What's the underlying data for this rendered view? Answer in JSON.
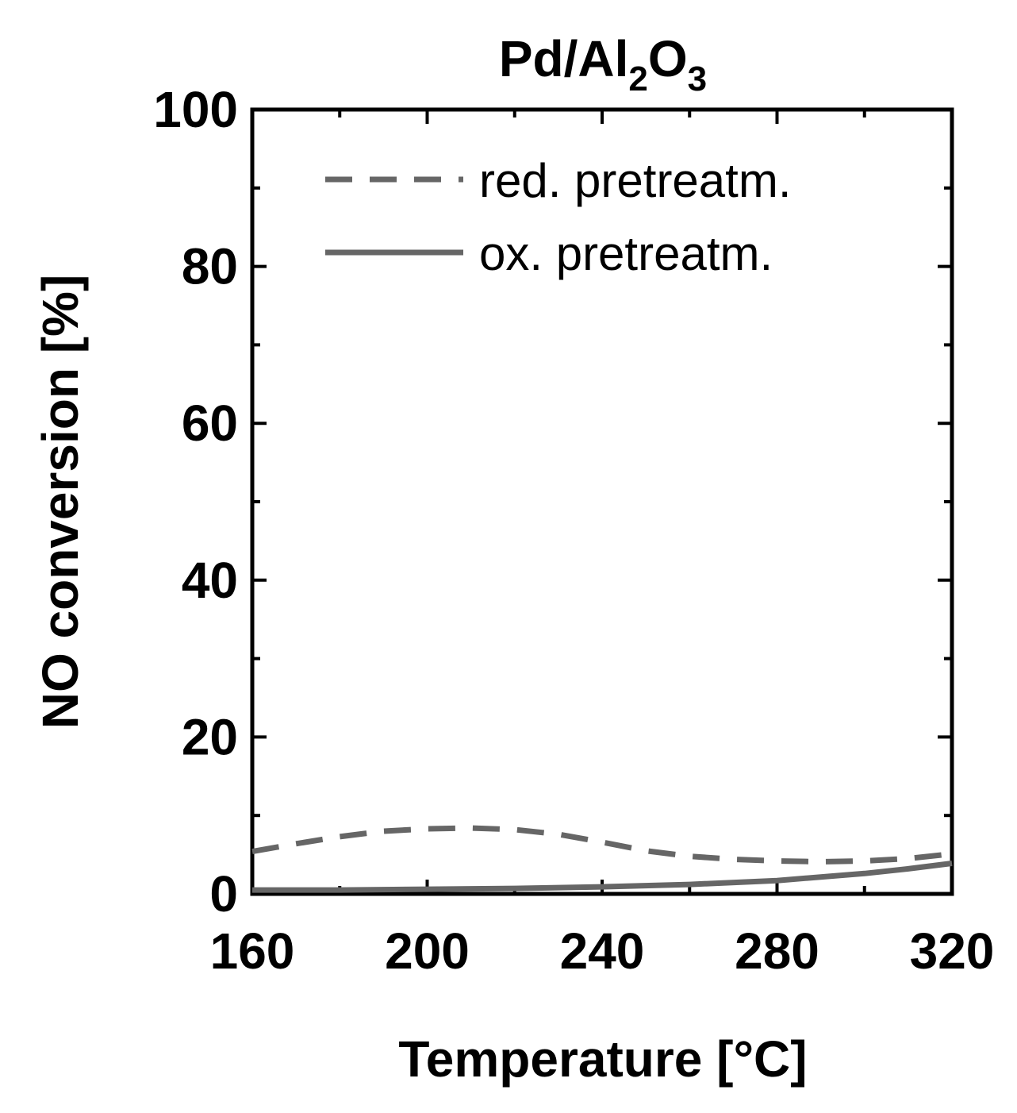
{
  "chart_data": {
    "type": "line",
    "title": {
      "parts": [
        {
          "text": "Pd/Al",
          "sub": false
        },
        {
          "text": "2",
          "sub": true
        },
        {
          "text": "O",
          "sub": false
        },
        {
          "text": "3",
          "sub": true
        }
      ]
    },
    "xlabel": "Temperature [°C]",
    "ylabel": "NO conversion [%]",
    "xlim": [
      160,
      320
    ],
    "ylim": [
      0,
      100
    ],
    "xticks": [
      160,
      200,
      240,
      280,
      320
    ],
    "yticks": [
      0,
      20,
      40,
      60,
      80,
      100
    ],
    "xtick_labels": [
      "160",
      "200",
      "240",
      "280",
      "320"
    ],
    "ytick_labels": [
      "0",
      "20",
      "40",
      "60",
      "80",
      "100"
    ],
    "grid": false,
    "legend_position": "top-right",
    "series": [
      {
        "name": "red. pretreatm.",
        "style": "dashed",
        "color": "#666666",
        "x": [
          160,
          170,
          180,
          190,
          200,
          210,
          220,
          230,
          240,
          250,
          260,
          270,
          280,
          290,
          300,
          310,
          320
        ],
        "y": [
          5.4,
          6.4,
          7.3,
          8.0,
          8.3,
          8.4,
          8.2,
          7.6,
          6.6,
          5.5,
          4.8,
          4.4,
          4.2,
          4.1,
          4.2,
          4.5,
          5.1
        ]
      },
      {
        "name": "ox. pretreatm.",
        "style": "solid",
        "color": "#666666",
        "x": [
          160,
          180,
          200,
          220,
          240,
          260,
          280,
          300,
          310,
          320
        ],
        "y": [
          0.5,
          0.5,
          0.6,
          0.7,
          0.9,
          1.2,
          1.7,
          2.6,
          3.2,
          3.9
        ]
      }
    ]
  }
}
